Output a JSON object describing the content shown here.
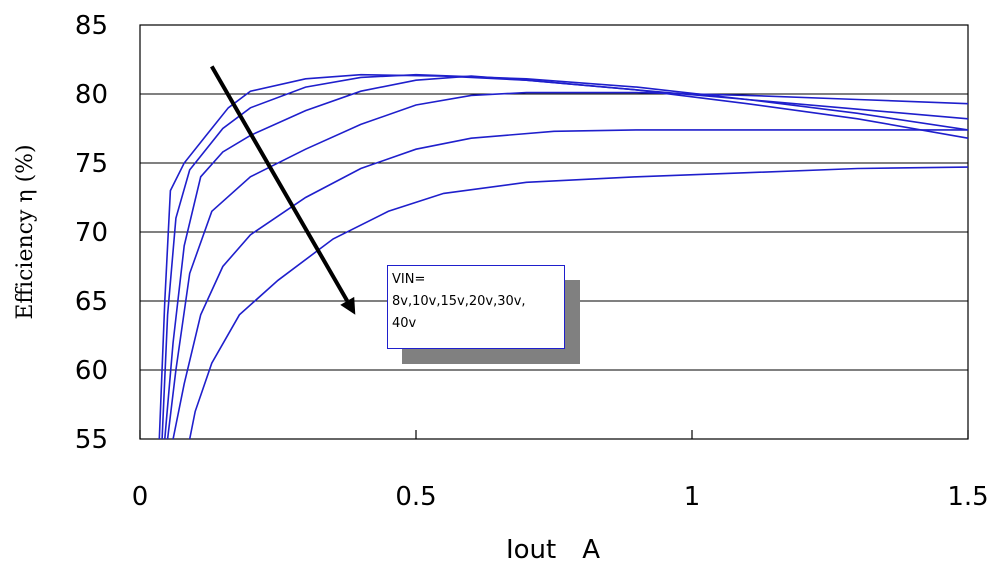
{
  "chart_data": {
    "type": "line",
    "title": "",
    "xlabel": "Iout　A",
    "ylabel": "Efficiency η (%)",
    "xlim": [
      0,
      1.5
    ],
    "ylim": [
      55,
      85
    ],
    "xticks": [
      0,
      0.5,
      1,
      1.5
    ],
    "xtick_labels": [
      "0",
      "0.5",
      "1",
      "1.5"
    ],
    "yticks": [
      55,
      60,
      65,
      70,
      75,
      80,
      85
    ],
    "ytick_labels": [
      "55",
      "60",
      "65",
      "70",
      "75",
      "80",
      "85"
    ],
    "grid": {
      "horizontal": true,
      "vertical": false
    },
    "line_color": "#1f1fcc",
    "annotation": {
      "lines": [
        "VIN=",
        "8v,10v,15v,20v,30v,",
        "40v"
      ]
    },
    "arrow": {
      "from": [
        0.13,
        82
      ],
      "to": [
        0.39,
        64
      ]
    },
    "series": [
      {
        "points": [
          [
            0.035,
            55
          ],
          [
            0.045,
            65
          ],
          [
            0.055,
            73
          ],
          [
            0.08,
            75
          ],
          [
            0.12,
            77
          ],
          [
            0.16,
            79
          ],
          [
            0.2,
            80.2
          ],
          [
            0.3,
            81.1
          ],
          [
            0.4,
            81.4
          ],
          [
            0.55,
            81.3
          ],
          [
            0.7,
            81
          ],
          [
            0.9,
            80.3
          ],
          [
            1.1,
            79.3
          ],
          [
            1.3,
            78.2
          ],
          [
            1.5,
            76.8
          ]
        ]
      },
      {
        "points": [
          [
            0.04,
            55
          ],
          [
            0.05,
            64
          ],
          [
            0.065,
            71
          ],
          [
            0.09,
            74.5
          ],
          [
            0.15,
            77.5
          ],
          [
            0.2,
            79
          ],
          [
            0.3,
            80.5
          ],
          [
            0.4,
            81.2
          ],
          [
            0.5,
            81.4
          ],
          [
            0.7,
            81.1
          ],
          [
            0.9,
            80.5
          ],
          [
            1.1,
            79.6
          ],
          [
            1.3,
            78.9
          ],
          [
            1.5,
            78.2
          ]
        ]
      },
      {
        "points": [
          [
            0.045,
            55
          ],
          [
            0.06,
            62
          ],
          [
            0.08,
            69
          ],
          [
            0.11,
            74
          ],
          [
            0.15,
            75.8
          ],
          [
            0.2,
            77
          ],
          [
            0.3,
            78.8
          ],
          [
            0.4,
            80.2
          ],
          [
            0.5,
            81
          ],
          [
            0.6,
            81.3
          ],
          [
            0.7,
            81
          ],
          [
            0.9,
            80.3
          ],
          [
            1.1,
            79.6
          ],
          [
            1.3,
            78.6
          ],
          [
            1.5,
            77.4
          ]
        ]
      },
      {
        "points": [
          [
            0.05,
            55
          ],
          [
            0.065,
            60
          ],
          [
            0.09,
            67
          ],
          [
            0.13,
            71.5
          ],
          [
            0.2,
            74
          ],
          [
            0.3,
            76
          ],
          [
            0.4,
            77.8
          ],
          [
            0.5,
            79.2
          ],
          [
            0.6,
            79.9
          ],
          [
            0.7,
            80.1
          ],
          [
            0.9,
            80.1
          ],
          [
            1.1,
            79.9
          ],
          [
            1.3,
            79.6
          ],
          [
            1.5,
            79.3
          ]
        ]
      },
      {
        "points": [
          [
            0.06,
            55
          ],
          [
            0.08,
            59
          ],
          [
            0.11,
            64
          ],
          [
            0.15,
            67.5
          ],
          [
            0.2,
            69.8
          ],
          [
            0.3,
            72.5
          ],
          [
            0.4,
            74.6
          ],
          [
            0.5,
            76
          ],
          [
            0.6,
            76.8
          ],
          [
            0.75,
            77.3
          ],
          [
            0.9,
            77.4
          ],
          [
            1.1,
            77.4
          ],
          [
            1.3,
            77.4
          ],
          [
            1.5,
            77.4
          ]
        ]
      },
      {
        "points": [
          [
            0.09,
            55
          ],
          [
            0.1,
            57
          ],
          [
            0.13,
            60.5
          ],
          [
            0.18,
            64
          ],
          [
            0.25,
            66.5
          ],
          [
            0.35,
            69.5
          ],
          [
            0.45,
            71.5
          ],
          [
            0.55,
            72.8
          ],
          [
            0.7,
            73.6
          ],
          [
            0.9,
            74
          ],
          [
            1.1,
            74.3
          ],
          [
            1.3,
            74.6
          ],
          [
            1.5,
            74.7
          ]
        ]
      }
    ]
  }
}
